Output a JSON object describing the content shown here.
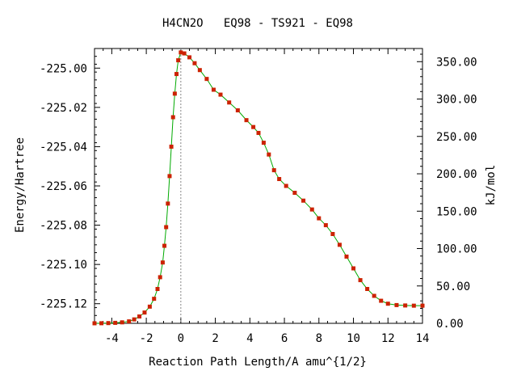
{
  "chart_data": {
    "type": "scatter",
    "title": "H4CN2O   EQ98 - TS921 - EQ98",
    "xlabel": "Reaction Path Length/A amu^{1/2}",
    "ylabel": "Energy/Hartree",
    "y2label": "kJ/mol",
    "xlim": [
      -5,
      14
    ],
    "ylim": [
      -225.13,
      -224.99
    ],
    "y2lim": [
      0,
      367.6
    ],
    "x_ticks": [
      -4,
      -2,
      0,
      2,
      4,
      6,
      8,
      10,
      12,
      14
    ],
    "x_tick_labels": [
      "-4",
      "-2",
      "0",
      "2",
      "4",
      "6",
      "8",
      "10",
      "12",
      "14"
    ],
    "y_ticks": [
      -225.12,
      -225.1,
      -225.08,
      -225.06,
      -225.04,
      -225.02,
      -225.0
    ],
    "y_tick_labels": [
      "-225.12",
      "-225.10",
      "-225.08",
      "-225.06",
      "-225.04",
      "-225.02",
      "-225.00"
    ],
    "y2_ticks": [
      0,
      50,
      100,
      150,
      200,
      250,
      300,
      350
    ],
    "y2_tick_labels": [
      "0.00",
      "50.00",
      "100.00",
      "150.00",
      "200.00",
      "250.00",
      "300.00",
      "350.00"
    ],
    "grid": false,
    "legend": "none",
    "ts_marker_x": 0,
    "colors": {
      "points": "#cc2200",
      "line": "#00aa00",
      "ts_line": "#888888"
    },
    "series": [
      {
        "points": [
          [
            -5.0,
            -225.12998
          ],
          [
            -4.6,
            -225.12995
          ],
          [
            -4.2,
            -225.12988
          ],
          [
            -3.8,
            -225.12975
          ],
          [
            -3.4,
            -225.1295
          ],
          [
            -3.0,
            -225.129
          ],
          [
            -2.7,
            -225.128
          ],
          [
            -2.4,
            -225.1265
          ],
          [
            -2.1,
            -225.1245
          ],
          [
            -1.8,
            -225.1215
          ],
          [
            -1.55,
            -225.1175
          ],
          [
            -1.35,
            -225.1125
          ],
          [
            -1.2,
            -225.1065
          ],
          [
            -1.05,
            -225.099
          ],
          [
            -0.95,
            -225.0905
          ],
          [
            -0.85,
            -225.081
          ],
          [
            -0.75,
            -225.069
          ],
          [
            -0.65,
            -225.055
          ],
          [
            -0.55,
            -225.04
          ],
          [
            -0.45,
            -225.025
          ],
          [
            -0.35,
            -225.013
          ],
          [
            -0.25,
            -225.003
          ],
          [
            -0.15,
            -224.996
          ],
          [
            0.0,
            -224.992
          ],
          [
            0.2,
            -224.9925
          ],
          [
            0.5,
            -224.9945
          ],
          [
            0.8,
            -224.9975
          ],
          [
            1.1,
            -225.001
          ],
          [
            1.5,
            -225.0055
          ],
          [
            1.9,
            -225.011
          ],
          [
            2.3,
            -225.0135
          ],
          [
            2.8,
            -225.0175
          ],
          [
            3.3,
            -225.0215
          ],
          [
            3.8,
            -225.0265
          ],
          [
            4.2,
            -225.03
          ],
          [
            4.5,
            -225.033
          ],
          [
            4.8,
            -225.038
          ],
          [
            5.1,
            -225.044
          ],
          [
            5.4,
            -225.052
          ],
          [
            5.7,
            -225.0565
          ],
          [
            6.1,
            -225.06
          ],
          [
            6.6,
            -225.0635
          ],
          [
            7.1,
            -225.0675
          ],
          [
            7.6,
            -225.072
          ],
          [
            8.0,
            -225.0765
          ],
          [
            8.4,
            -225.08
          ],
          [
            8.8,
            -225.0845
          ],
          [
            9.2,
            -225.09
          ],
          [
            9.6,
            -225.096
          ],
          [
            10.0,
            -225.102
          ],
          [
            10.4,
            -225.108
          ],
          [
            10.8,
            -225.1125
          ],
          [
            11.2,
            -225.116
          ],
          [
            11.6,
            -225.1185
          ],
          [
            12.0,
            -225.12
          ],
          [
            12.5,
            -225.1207
          ],
          [
            13.0,
            -225.1209
          ],
          [
            13.5,
            -225.121
          ],
          [
            14.0,
            -225.121
          ]
        ]
      }
    ]
  }
}
